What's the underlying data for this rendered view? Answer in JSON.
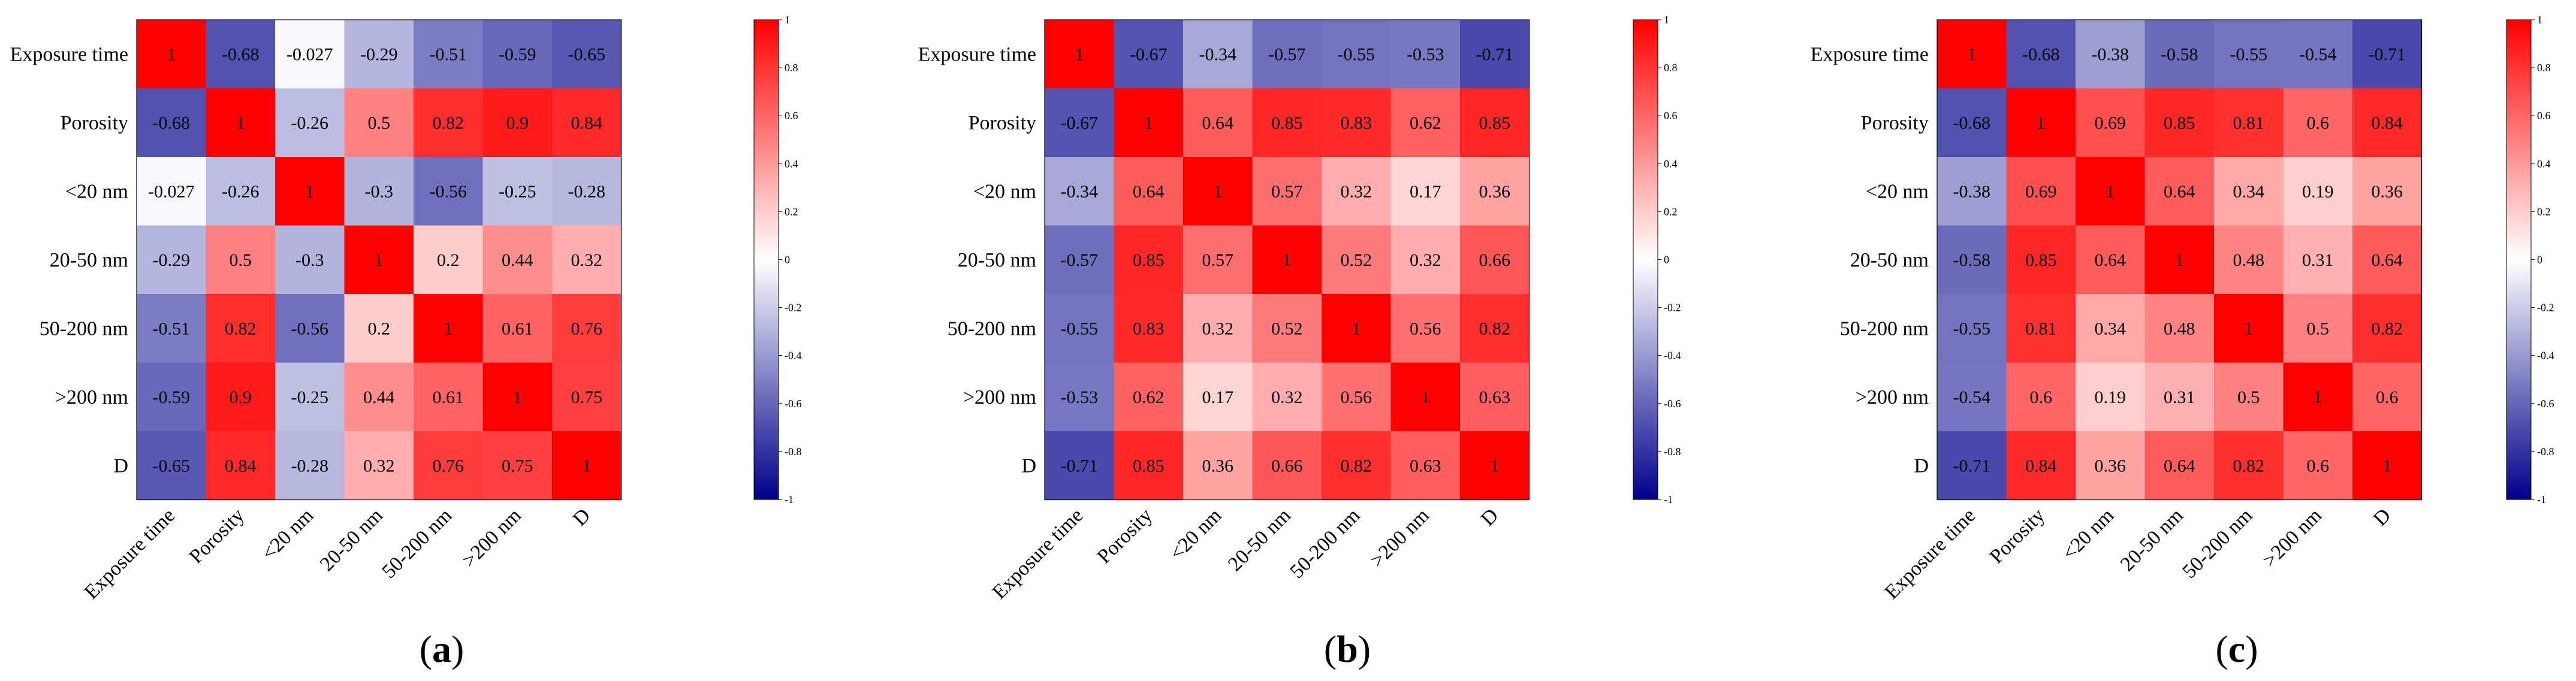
{
  "chart_data": [
    {
      "type": "heatmap",
      "panel_label": "a",
      "labels": [
        "Exposure time",
        "Porosity",
        "<20 nm",
        "20-50 nm",
        "50-200 nm",
        ">200 nm",
        "D"
      ],
      "matrix": [
        [
          1,
          -0.68,
          -0.027,
          -0.29,
          -0.51,
          -0.59,
          -0.65
        ],
        [
          -0.68,
          1,
          -0.26,
          0.5,
          0.82,
          0.9,
          0.84
        ],
        [
          -0.027,
          -0.26,
          1,
          -0.3,
          -0.56,
          -0.25,
          -0.28
        ],
        [
          -0.29,
          0.5,
          -0.3,
          1,
          0.2,
          0.44,
          0.32
        ],
        [
          -0.51,
          0.82,
          -0.56,
          0.2,
          1,
          0.61,
          0.76
        ],
        [
          -0.59,
          0.9,
          -0.25,
          0.44,
          0.61,
          1,
          0.75
        ],
        [
          -0.65,
          0.84,
          -0.28,
          0.32,
          0.76,
          0.75,
          1
        ]
      ],
      "colorbar": {
        "range": [
          -1,
          1
        ],
        "ticks": [
          "1",
          "0.8",
          "0.6",
          "0.4",
          "0.2",
          "0",
          "-0.2",
          "-0.4",
          "-0.6",
          "-0.8",
          "-1"
        ]
      },
      "colormap": {
        "low": "#00008b",
        "mid": "#ffffff",
        "high": "#ff0000"
      }
    },
    {
      "type": "heatmap",
      "panel_label": "b",
      "labels": [
        "Exposure time",
        "Porosity",
        "<20 nm",
        "20-50 nm",
        "50-200 nm",
        ">200 nm",
        "D"
      ],
      "matrix": [
        [
          1,
          -0.67,
          -0.34,
          -0.57,
          -0.55,
          -0.53,
          -0.71
        ],
        [
          -0.67,
          1,
          0.64,
          0.85,
          0.83,
          0.62,
          0.85
        ],
        [
          -0.34,
          0.64,
          1,
          0.57,
          0.32,
          0.17,
          0.36
        ],
        [
          -0.57,
          0.85,
          0.57,
          1,
          0.52,
          0.32,
          0.66
        ],
        [
          -0.55,
          0.83,
          0.32,
          0.52,
          1,
          0.56,
          0.82
        ],
        [
          -0.53,
          0.62,
          0.17,
          0.32,
          0.56,
          1,
          0.63
        ],
        [
          -0.71,
          0.85,
          0.36,
          0.66,
          0.82,
          0.63,
          1
        ]
      ],
      "colorbar": {
        "range": [
          -1,
          1
        ],
        "ticks": [
          "1",
          "0.8",
          "0.6",
          "0.4",
          "0.2",
          "0",
          "-0.2",
          "-0.4",
          "-0.6",
          "-0.8",
          "-1"
        ]
      },
      "colormap": {
        "low": "#00008b",
        "mid": "#ffffff",
        "high": "#ff0000"
      }
    },
    {
      "type": "heatmap",
      "panel_label": "c",
      "labels": [
        "Exposure time",
        "Porosity",
        "<20 nm",
        "20-50 nm",
        "50-200 nm",
        ">200 nm",
        "D"
      ],
      "matrix": [
        [
          1,
          -0.68,
          -0.38,
          -0.58,
          -0.55,
          -0.54,
          -0.71
        ],
        [
          -0.68,
          1,
          0.69,
          0.85,
          0.81,
          0.6,
          0.84
        ],
        [
          -0.38,
          0.69,
          1,
          0.64,
          0.34,
          0.19,
          0.36
        ],
        [
          -0.58,
          0.85,
          0.64,
          1,
          0.48,
          0.31,
          0.64
        ],
        [
          -0.55,
          0.81,
          0.34,
          0.48,
          1,
          0.5,
          0.82
        ],
        [
          -0.54,
          0.6,
          0.19,
          0.31,
          0.5,
          1,
          0.6
        ],
        [
          -0.71,
          0.84,
          0.36,
          0.64,
          0.82,
          0.6,
          1
        ]
      ],
      "colorbar": {
        "range": [
          -1,
          1
        ],
        "ticks": [
          "1",
          "0.8",
          "0.6",
          "0.4",
          "0.2",
          "0",
          "-0.2",
          "-0.4",
          "-0.6",
          "-0.8",
          "-1"
        ]
      },
      "colormap": {
        "low": "#00008b",
        "mid": "#ffffff",
        "high": "#ff0000"
      }
    }
  ]
}
